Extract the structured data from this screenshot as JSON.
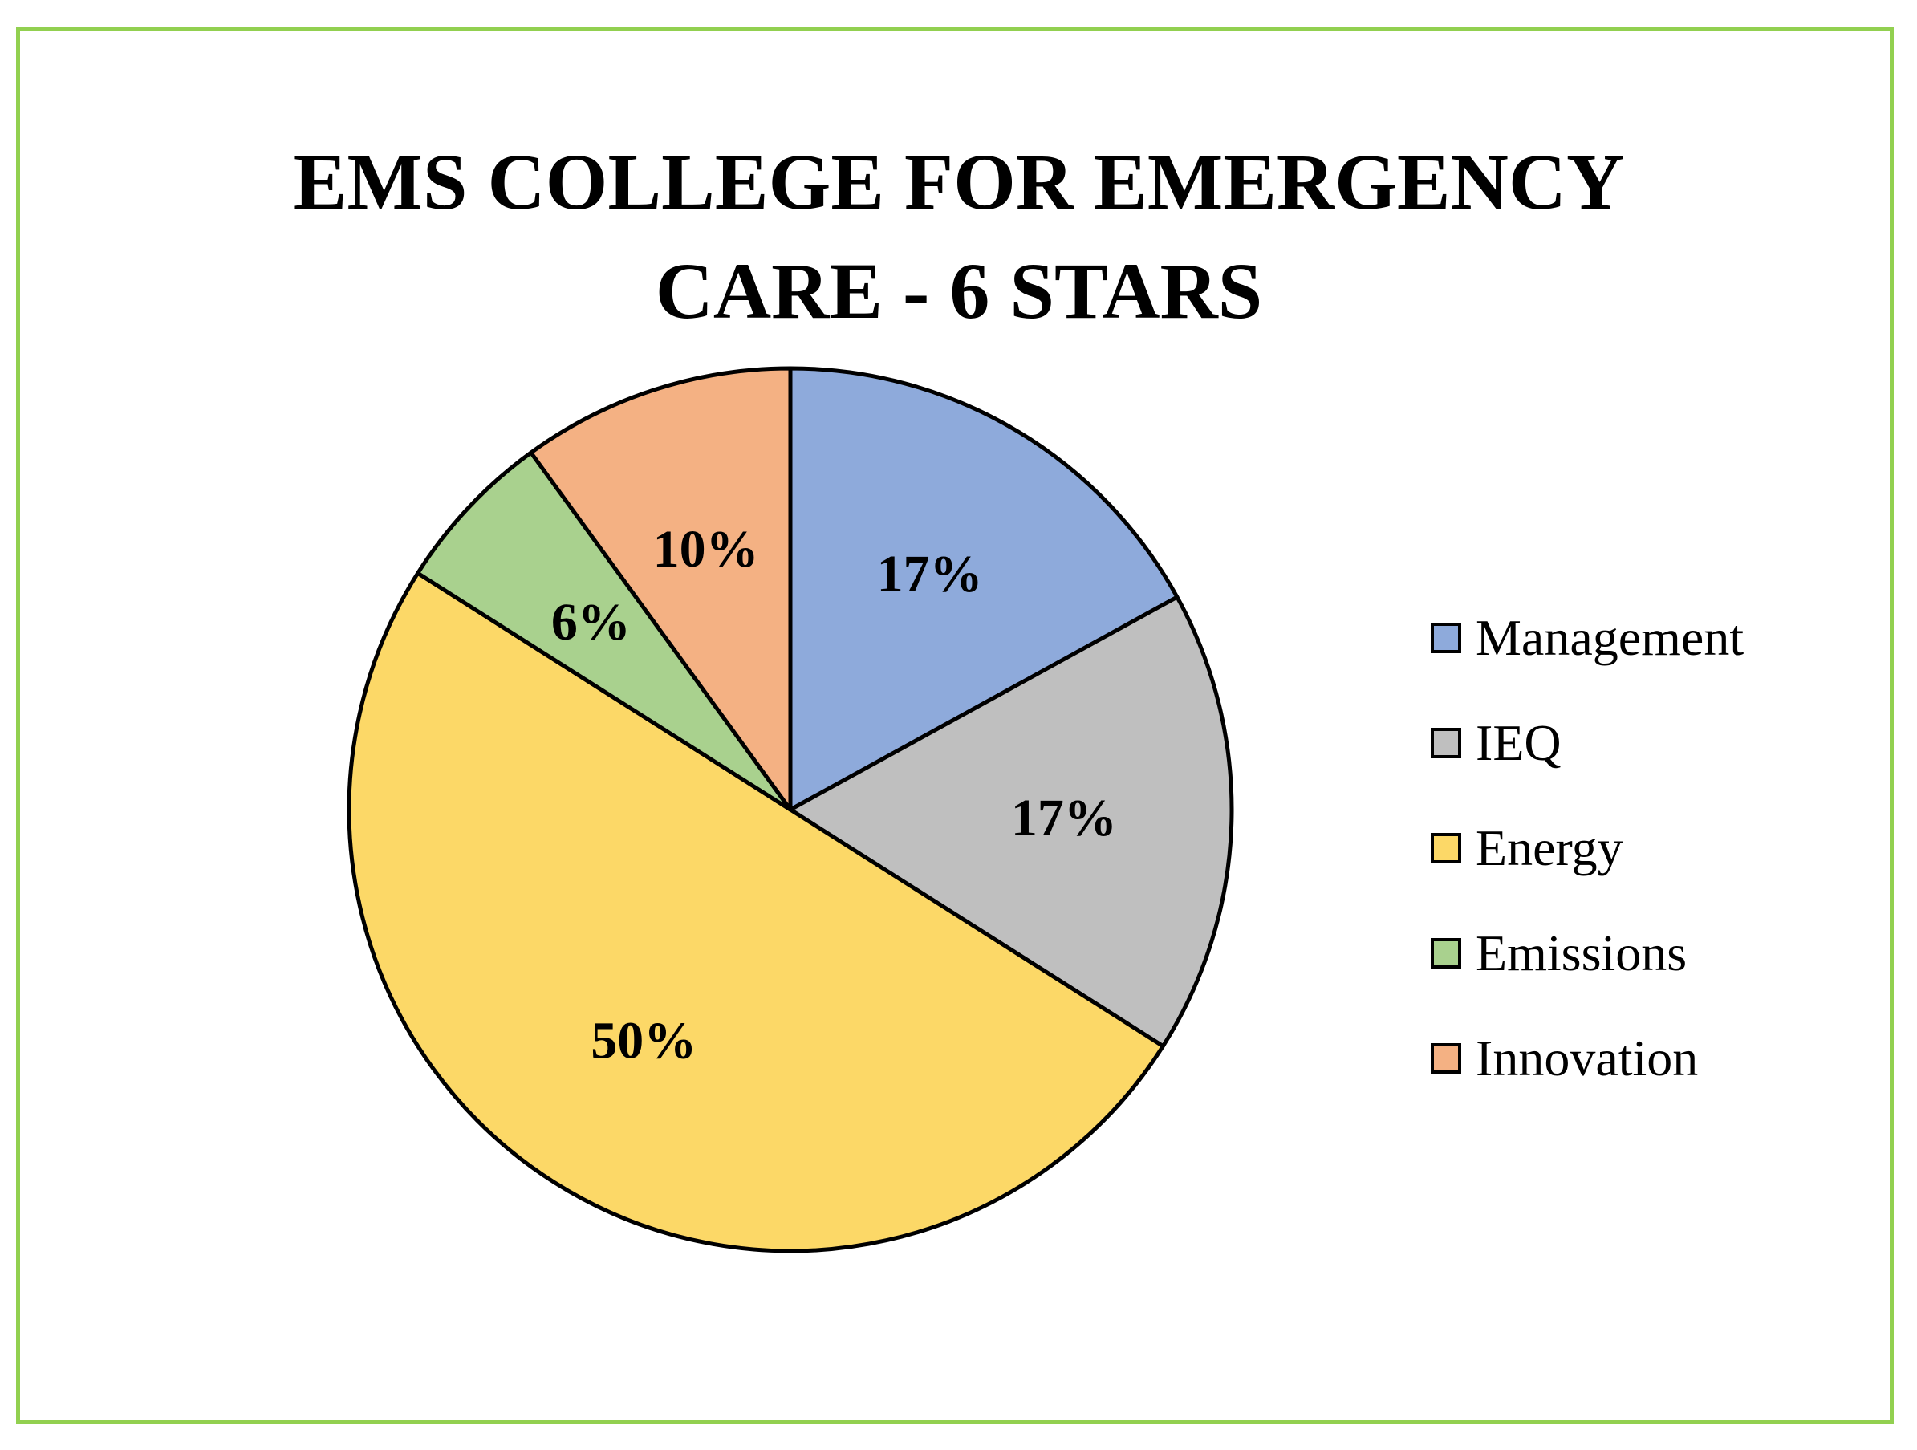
{
  "chart_data": {
    "type": "pie",
    "title": "EMS COLLEGE FOR EMERGENCY CARE - 6 STARS",
    "title_lines": [
      "EMS COLLEGE FOR EMERGENCY",
      "CARE - 6 STARS"
    ],
    "legend_position": "right",
    "slices": [
      {
        "name": "Management",
        "value": 17,
        "label": "17%",
        "color": "#8eaadb"
      },
      {
        "name": "IEQ",
        "value": 17,
        "label": "17%",
        "color": "#bfbfbf"
      },
      {
        "name": "Energy",
        "value": 50,
        "label": "50%",
        "color": "#fcd867"
      },
      {
        "name": "Emissions",
        "value": 6,
        "label": "6%",
        "color": "#a9d18e"
      },
      {
        "name": "Innovation",
        "value": 10,
        "label": "10%",
        "color": "#f4b183"
      }
    ]
  },
  "colors": {
    "frame_border": "#92d050",
    "slice_outline": "#000000"
  }
}
